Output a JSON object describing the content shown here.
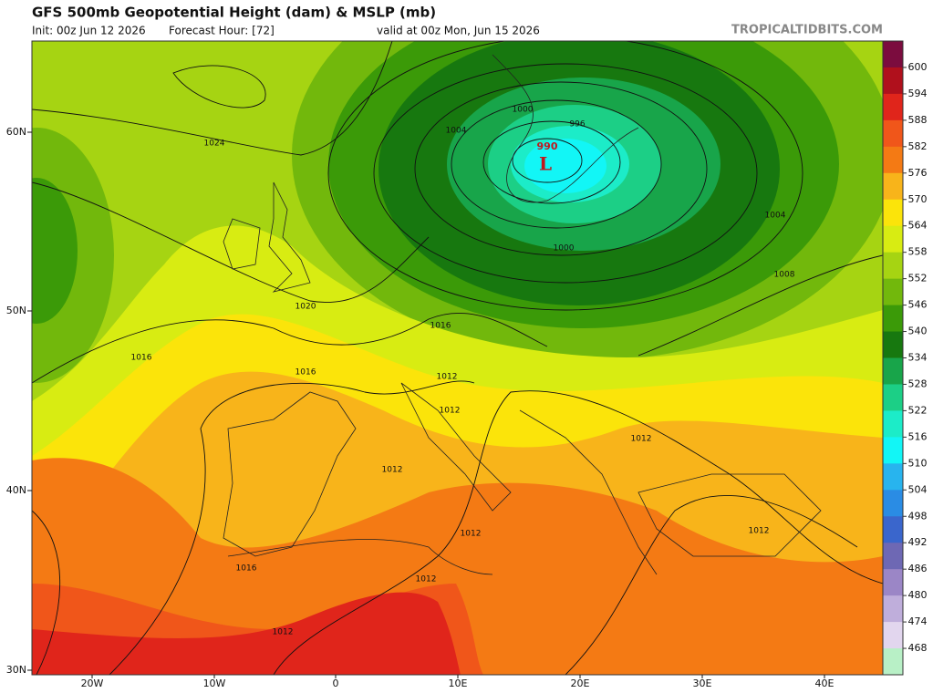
{
  "header": {
    "title": "GFS 500mb Geopotential Height (dam) & MSLP (mb)",
    "init": "Init: 00z Jun 12 2026",
    "forecast_hour": "Forecast Hour: [72]",
    "valid": "valid at 00z Mon, Jun 15 2026",
    "site": "TROPICALTIDBITS.COM"
  },
  "map": {
    "lat_labels": [
      "60N",
      "50N",
      "40N",
      "30N"
    ],
    "lon_labels": [
      "20W",
      "10W",
      "0",
      "10E",
      "20E",
      "30E",
      "40E"
    ],
    "isobar_labels": [
      1024,
      1020,
      1016,
      1016,
      1016,
      1012,
      1012,
      1012,
      1012,
      1012,
      1012,
      1016,
      1012,
      1012,
      1008,
      1004,
      1000,
      1000,
      1004,
      996
    ],
    "low_center": {
      "label": "L",
      "pressure": 990
    }
  },
  "colorbar": {
    "levels": [
      600,
      594,
      588,
      582,
      576,
      570,
      564,
      558,
      552,
      546,
      540,
      534,
      528,
      522,
      516,
      510,
      504,
      498,
      492,
      486,
      480,
      474,
      468
    ],
    "colors": [
      "#7b0c3e",
      "#b0101c",
      "#e0251b",
      "#f0561a",
      "#f47a14",
      "#f8b41a",
      "#fbe40a",
      "#d8ec12",
      "#a6d412",
      "#72b80c",
      "#3b9a08",
      "#17780f",
      "#18a54a",
      "#1ccf86",
      "#1cecc8",
      "#12f6f6",
      "#28b4ee",
      "#2a8ce4",
      "#3a66cc",
      "#6e68b4",
      "#9b86c6",
      "#bfaedb",
      "#e2d6ee",
      "#b8f0c6"
    ]
  }
}
